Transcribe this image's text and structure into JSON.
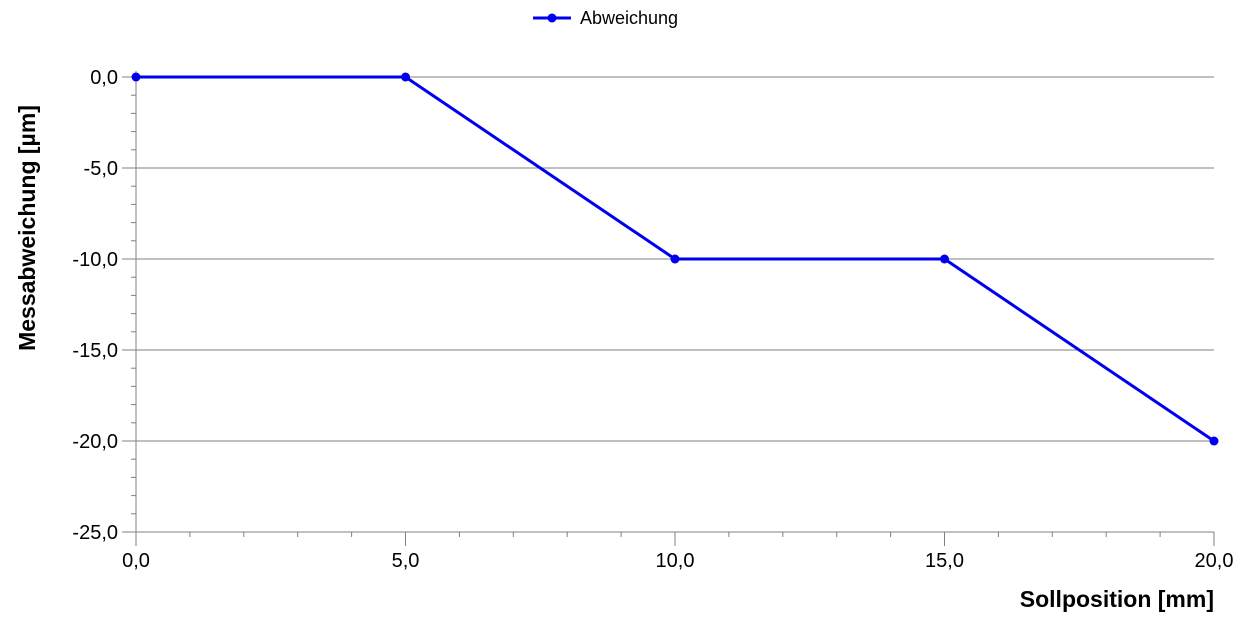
{
  "chart_data": {
    "type": "line",
    "title": "",
    "xlabel": "Sollposition [mm]",
    "ylabel": "Messabweichung [µm]",
    "xlim": [
      0,
      20
    ],
    "ylim": [
      -25,
      0
    ],
    "x_ticks": [
      0,
      5,
      10,
      15,
      20
    ],
    "x_tick_labels": [
      "0,0",
      "5,0",
      "10,0",
      "15,0",
      "20,0"
    ],
    "y_ticks": [
      0,
      -5,
      -10,
      -15,
      -20,
      -25
    ],
    "y_tick_labels": [
      "0,0",
      "-5,0",
      "-10,0",
      "-15,0",
      "-20,0",
      "-25,0"
    ],
    "grid": "horizontal",
    "legend_position": "top-center",
    "series": [
      {
        "name": "Abweichung",
        "color": "#0000ee",
        "marker": "circle",
        "x": [
          0,
          5,
          10,
          15,
          20
        ],
        "y": [
          0,
          0,
          -10,
          -10,
          -20
        ]
      }
    ]
  }
}
